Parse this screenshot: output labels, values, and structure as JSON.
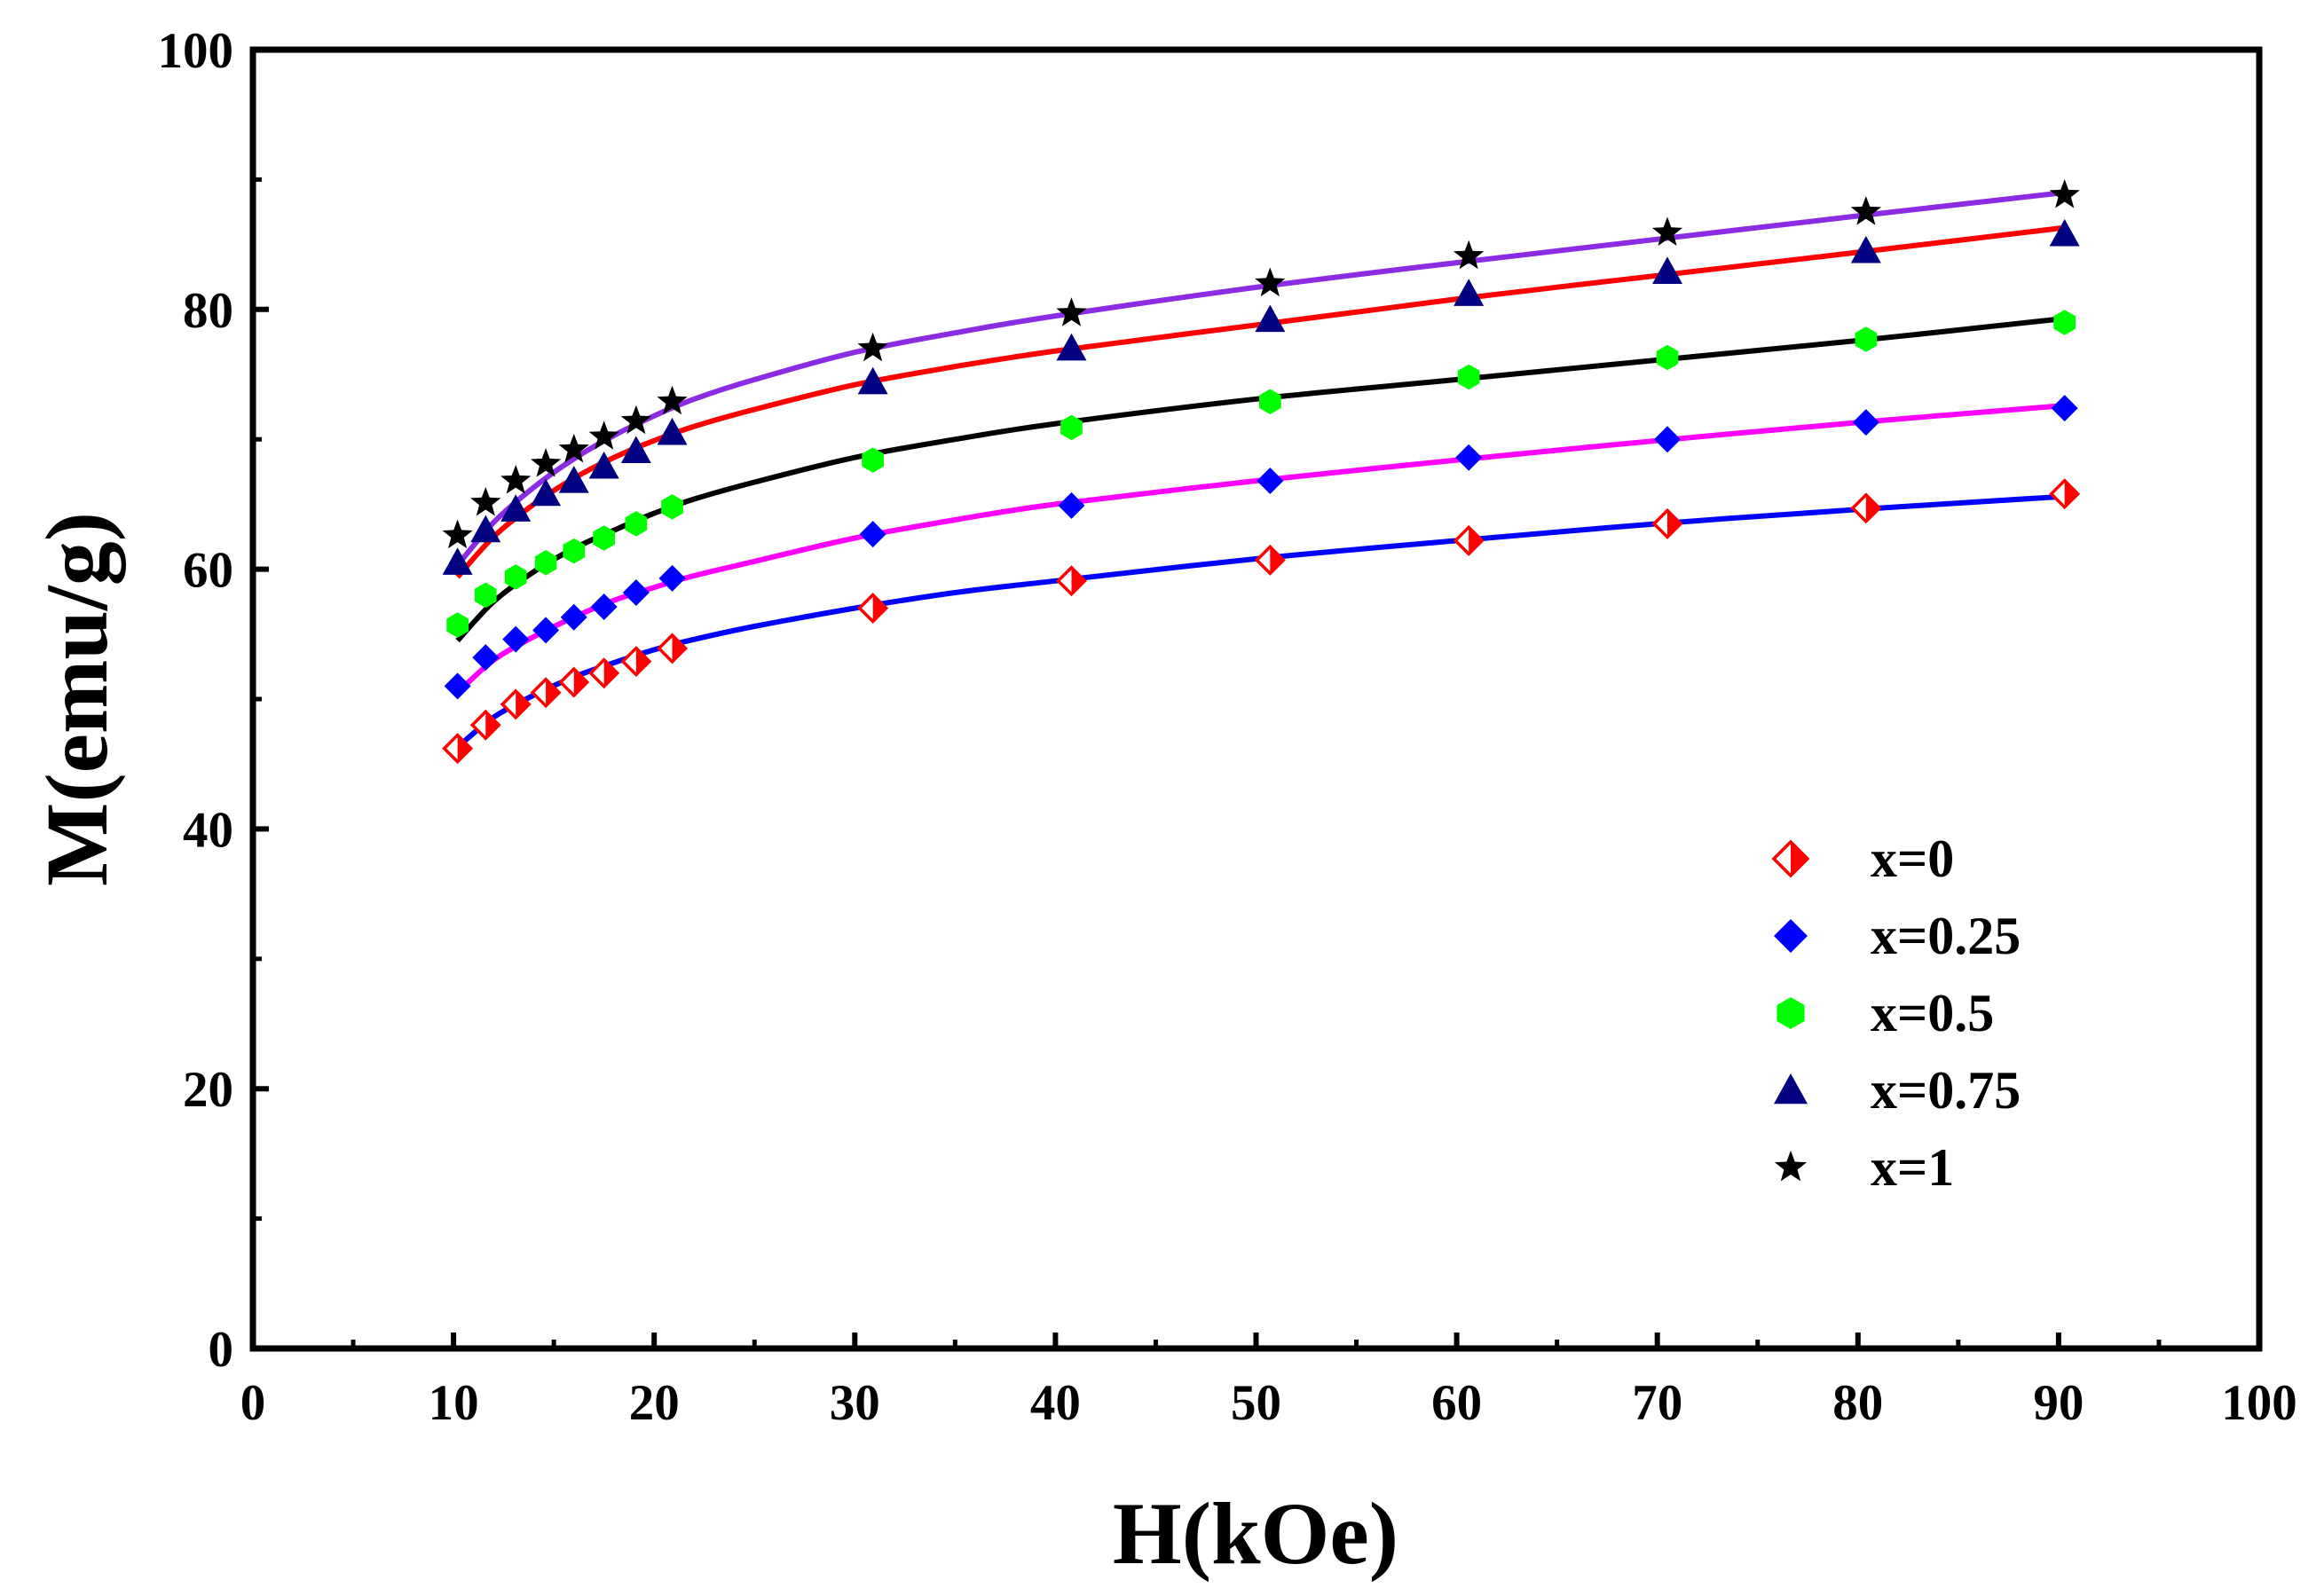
{
  "chart_data": {
    "type": "scatter",
    "title": "",
    "xlabel": "H(kOe)",
    "ylabel": "M(emu/g)",
    "xlim": [
      0,
      100
    ],
    "ylim": [
      0,
      100
    ],
    "xticks": [
      0,
      10,
      20,
      30,
      40,
      50,
      60,
      70,
      80,
      90,
      100
    ],
    "yticks": [
      0,
      20,
      40,
      60,
      80,
      100
    ],
    "xtick_labels": [
      "0",
      "10",
      "20",
      "30",
      "40",
      "50",
      "60",
      "70",
      "80",
      "90",
      "100"
    ],
    "ytick_labels": [
      "0",
      "20",
      "40",
      "60",
      "80",
      "100"
    ],
    "grid": false,
    "legend_position": "right-middle",
    "x": [
      10.2,
      11.6,
      13.1,
      14.6,
      16.0,
      17.5,
      19.1,
      20.9,
      30.9,
      40.8,
      50.7,
      60.6,
      70.5,
      80.4,
      90.3
    ],
    "series": [
      {
        "name": "x=0",
        "marker": "half-diamond",
        "color": "#ff0000",
        "fit_color": "#0000ff",
        "values": [
          46.2,
          48.0,
          49.6,
          50.5,
          51.3,
          52.0,
          52.9,
          53.9,
          57.0,
          59.1,
          60.7,
          62.2,
          63.5,
          64.7,
          65.8
        ],
        "fit_x": [
          10.2,
          12,
          14,
          16,
          18,
          20,
          22,
          25,
          30,
          35,
          40,
          50,
          60,
          70,
          80,
          90.3
        ],
        "fit_values": [
          46.3,
          48.6,
          50.3,
          51.7,
          52.8,
          53.8,
          54.6,
          55.6,
          57.0,
          58.2,
          59.1,
          60.8,
          62.2,
          63.5,
          64.6,
          65.6
        ]
      },
      {
        "name": "x=0.25",
        "marker": "diamond",
        "color": "#0000ff",
        "fit_color": "#ff00ff",
        "values": [
          51.0,
          53.2,
          54.6,
          55.3,
          56.3,
          57.1,
          58.2,
          59.3,
          62.7,
          64.9,
          66.8,
          68.6,
          70.0,
          71.3,
          72.4
        ],
        "fit_x": [
          10.2,
          12,
          14,
          16,
          18,
          20,
          22,
          25,
          30,
          35,
          40,
          50,
          60,
          70,
          80,
          90.3
        ],
        "fit_values": [
          50.5,
          53.0,
          54.8,
          56.3,
          57.6,
          58.6,
          59.5,
          60.6,
          62.4,
          63.8,
          65.0,
          66.8,
          68.4,
          69.9,
          71.3,
          72.6
        ]
      },
      {
        "name": "x=0.5",
        "marker": "hexagon",
        "color": "#00ff00",
        "fit_color": "#000000",
        "values": [
          55.7,
          58.0,
          59.4,
          60.5,
          61.4,
          62.4,
          63.5,
          64.8,
          68.4,
          70.9,
          72.9,
          74.8,
          76.3,
          77.7,
          79.0
        ],
        "fit_x": [
          10.2,
          12,
          14,
          16,
          18,
          20,
          22,
          25,
          30,
          35,
          40,
          50,
          60,
          70,
          80,
          90.3
        ],
        "fit_values": [
          54.5,
          57.5,
          59.8,
          61.6,
          63.0,
          64.3,
          65.4,
          66.7,
          68.6,
          70.0,
          71.2,
          73.1,
          74.6,
          76.1,
          77.6,
          79.3
        ]
      },
      {
        "name": "x=0.75",
        "marker": "triangle",
        "color": "#000080",
        "fit_color": "#ff0000",
        "values": [
          60.5,
          63.0,
          64.6,
          65.8,
          66.8,
          67.9,
          69.1,
          70.5,
          74.4,
          77.0,
          79.2,
          81.2,
          82.9,
          84.5,
          85.8
        ],
        "fit_x": [
          10.2,
          12,
          14,
          16,
          18,
          20,
          22,
          25,
          30,
          35,
          40,
          50,
          60,
          70,
          80,
          90.3
        ],
        "fit_values": [
          59.4,
          62.5,
          65.0,
          67.0,
          68.6,
          69.9,
          71.0,
          72.3,
          74.2,
          75.6,
          76.8,
          78.8,
          80.8,
          82.6,
          84.4,
          86.3
        ]
      },
      {
        "name": "x=1",
        "marker": "star",
        "color": "#000000",
        "fit_color": "#8b2be2",
        "values": [
          62.6,
          65.1,
          66.8,
          68.1,
          69.2,
          70.2,
          71.4,
          72.9,
          77.0,
          79.7,
          82.0,
          84.1,
          85.9,
          87.5,
          88.8
        ],
        "fit_x": [
          10.2,
          12,
          14,
          16,
          18,
          20,
          22,
          25,
          30,
          35,
          40,
          50,
          60,
          70,
          80,
          90.3
        ],
        "fit_values": [
          60.3,
          63.6,
          66.3,
          68.5,
          70.3,
          71.8,
          73.1,
          74.6,
          76.7,
          78.2,
          79.5,
          81.7,
          83.6,
          85.4,
          87.2,
          89.0
        ]
      }
    ]
  }
}
